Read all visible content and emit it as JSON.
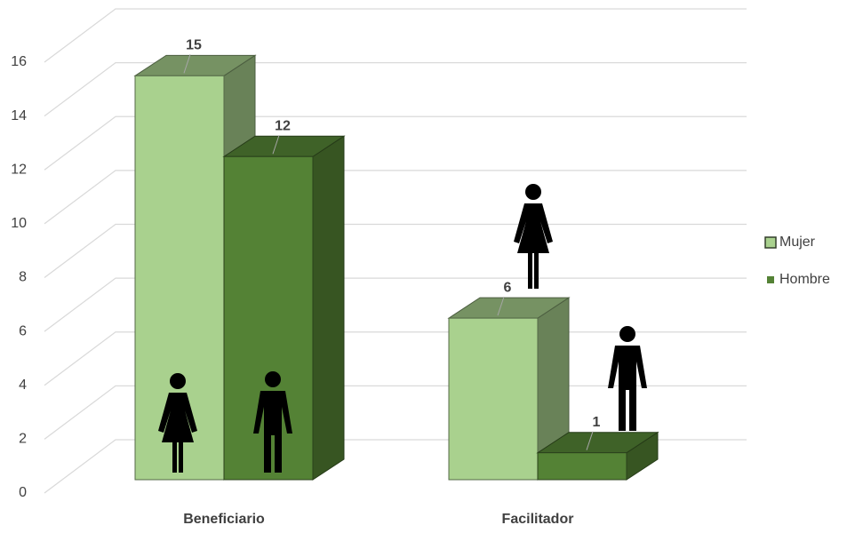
{
  "chart_data": {
    "type": "bar3d",
    "categories": [
      "Beneficiario",
      "Facilitador"
    ],
    "series": [
      {
        "name": "Mujer",
        "color": "#a9d18e",
        "values": [
          15,
          6
        ]
      },
      {
        "name": "Hombre",
        "color": "#548235",
        "values": [
          12,
          1
        ]
      }
    ],
    "ylim": [
      0,
      16
    ],
    "yticks": [
      0,
      2,
      4,
      6,
      8,
      10,
      12,
      14,
      16
    ],
    "grid": true,
    "legend": "right"
  }
}
